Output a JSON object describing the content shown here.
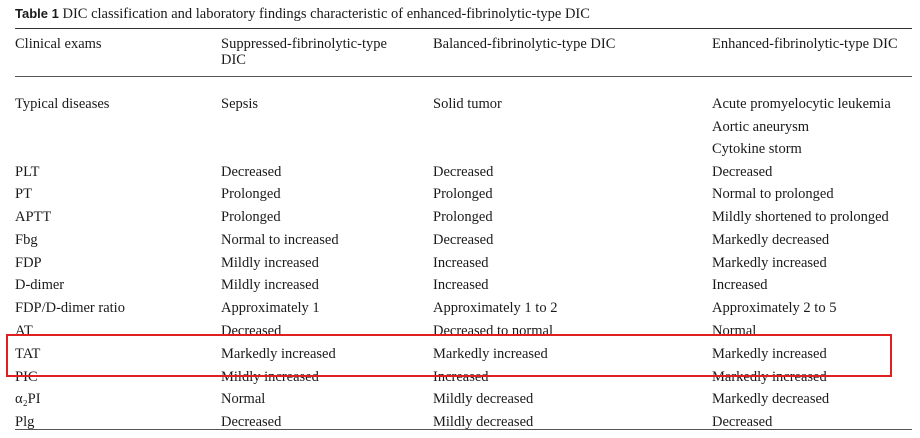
{
  "caption": {
    "label": "Table 1",
    "text": "DIC classification and laboratory findings characteristic of enhanced-fibrinolytic-type DIC"
  },
  "headers": [
    [
      "Clinical exams"
    ],
    [
      "Suppressed-fibrinolytic-type",
      "DIC"
    ],
    [
      "Balanced-fibrinolytic-type DIC"
    ],
    [
      "Enhanced-fibrinolytic-type DIC"
    ]
  ],
  "typical_diseases": {
    "label": "Typical diseases",
    "suppressed": "Sepsis",
    "balanced": "Solid tumor",
    "enhanced": [
      "Acute promyelocytic leukemia",
      "Aortic aneurysm",
      "Cytokine storm"
    ]
  },
  "rows": [
    {
      "exam": "PLT",
      "suppressed": "Decreased",
      "balanced": "Decreased",
      "enhanced": "Decreased"
    },
    {
      "exam": "PT",
      "suppressed": "Prolonged",
      "balanced": "Prolonged",
      "enhanced": "Normal to prolonged"
    },
    {
      "exam": "APTT",
      "suppressed": "Prolonged",
      "balanced": "Prolonged",
      "enhanced": "Mildly shortened to prolonged"
    },
    {
      "exam": "Fbg",
      "suppressed": "Normal to increased",
      "balanced": "Decreased",
      "enhanced": "Markedly decreased"
    },
    {
      "exam": "FDP",
      "suppressed": "Mildly increased",
      "balanced": "Increased",
      "enhanced": "Markedly increased"
    },
    {
      "exam": "D-dimer",
      "suppressed": "Mildly increased",
      "balanced": "Increased",
      "enhanced": "Increased"
    },
    {
      "exam": "FDP/D-dimer ratio",
      "suppressed": "Approximately 1",
      "balanced": "Approximately 1 to 2",
      "enhanced": "Approximately 2 to 5"
    },
    {
      "exam": "AT",
      "suppressed": "Decreased",
      "balanced": "Decreased to normal",
      "enhanced": "Normal"
    },
    {
      "exam": "TAT",
      "suppressed": "Markedly increased",
      "balanced": "Markedly increased",
      "enhanced": "Markedly increased"
    },
    {
      "exam": "PIC",
      "suppressed": "Mildly increased",
      "balanced": "Increased",
      "enhanced": "Markedly increased"
    },
    {
      "exam": "α₂PI",
      "suppressed": "Normal",
      "balanced": "Mildly decreased",
      "enhanced": "Markedly decreased"
    },
    {
      "exam": "Plg",
      "suppressed": "Decreased",
      "balanced": "Mildly decreased",
      "enhanced": "Decreased"
    }
  ],
  "highlight_color": "#e02020"
}
